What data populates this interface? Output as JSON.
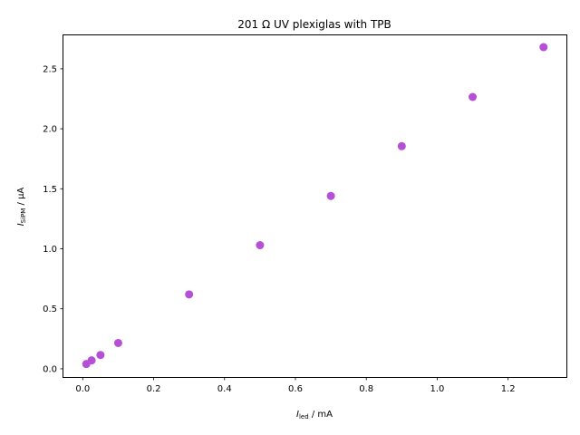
{
  "chart_data": {
    "type": "scatter",
    "title": "201 Ω UV plexiglas with TPB",
    "xlabel": {
      "symbol": "I",
      "subscript": "led",
      "unit": " / mA"
    },
    "ylabel": {
      "symbol": "I",
      "subscript": "SiPM",
      "unit": " / μA"
    },
    "xlim": [
      -0.0545,
      1.3645
    ],
    "ylim": [
      -0.0685,
      2.7785
    ],
    "xticks": [
      {
        "value": 0.0,
        "label": "0.0"
      },
      {
        "value": 0.2,
        "label": "0.2"
      },
      {
        "value": 0.4,
        "label": "0.4"
      },
      {
        "value": 0.6,
        "label": "0.6"
      },
      {
        "value": 0.8,
        "label": "0.8"
      },
      {
        "value": 1.0,
        "label": "1.0"
      },
      {
        "value": 1.2,
        "label": "1.2"
      }
    ],
    "yticks": [
      {
        "value": 0.0,
        "label": "0.0"
      },
      {
        "value": 0.5,
        "label": "0.5"
      },
      {
        "value": 1.0,
        "label": "1.0"
      },
      {
        "value": 1.5,
        "label": "1.5"
      },
      {
        "value": 2.0,
        "label": "2.0"
      },
      {
        "value": 2.5,
        "label": "2.5"
      }
    ],
    "grid": false,
    "marker_color": "#b44fd6",
    "points": [
      {
        "x": 0.01,
        "y": 0.04
      },
      {
        "x": 0.025,
        "y": 0.07
      },
      {
        "x": 0.05,
        "y": 0.115
      },
      {
        "x": 0.1,
        "y": 0.215
      },
      {
        "x": 0.3,
        "y": 0.62
      },
      {
        "x": 0.5,
        "y": 1.03
      },
      {
        "x": 0.7,
        "y": 1.44
      },
      {
        "x": 0.9,
        "y": 1.855
      },
      {
        "x": 1.1,
        "y": 2.265
      },
      {
        "x": 1.3,
        "y": 2.68
      }
    ]
  }
}
